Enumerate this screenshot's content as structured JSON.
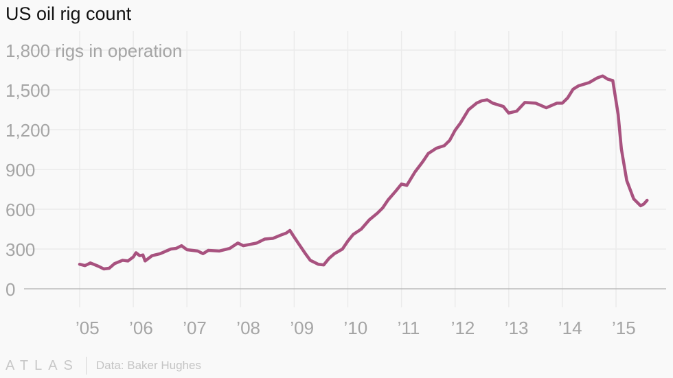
{
  "chart_data": {
    "type": "line",
    "title": "US oil rig count",
    "ylabel": "rigs in operation",
    "ylim": [
      0,
      1800
    ],
    "yticks": [
      0,
      300,
      600,
      900,
      1200,
      1500,
      1800
    ],
    "ytick_labels": [
      "0",
      "300",
      "600",
      "900",
      "1,200",
      "1,500",
      "1,800 rigs in operation"
    ],
    "xlim": [
      2004.5,
      2015.95
    ],
    "xticks": [
      2005,
      2006,
      2007,
      2008,
      2009,
      2010,
      2011,
      2012,
      2013,
      2014,
      2015
    ],
    "xtick_labels": [
      "’05",
      "’06",
      "’07",
      "’08",
      "’09",
      "’10",
      "’11",
      "’12",
      "’13",
      "’14",
      "’15"
    ],
    "grid": true,
    "color": "#a8527f",
    "series": [
      {
        "name": "US oil rig count",
        "points": [
          [
            2005.0,
            185
          ],
          [
            2005.1,
            175
          ],
          [
            2005.2,
            195
          ],
          [
            2005.35,
            170
          ],
          [
            2005.45,
            150
          ],
          [
            2005.55,
            155
          ],
          [
            2005.65,
            190
          ],
          [
            2005.8,
            215
          ],
          [
            2005.9,
            210
          ],
          [
            2006.0,
            240
          ],
          [
            2006.05,
            272
          ],
          [
            2006.12,
            250
          ],
          [
            2006.18,
            255
          ],
          [
            2006.22,
            210
          ],
          [
            2006.35,
            250
          ],
          [
            2006.5,
            265
          ],
          [
            2006.7,
            300
          ],
          [
            2006.8,
            305
          ],
          [
            2006.9,
            325
          ],
          [
            2007.0,
            295
          ],
          [
            2007.2,
            285
          ],
          [
            2007.3,
            265
          ],
          [
            2007.4,
            290
          ],
          [
            2007.6,
            285
          ],
          [
            2007.8,
            305
          ],
          [
            2007.95,
            345
          ],
          [
            2008.05,
            325
          ],
          [
            2008.3,
            345
          ],
          [
            2008.45,
            375
          ],
          [
            2008.6,
            380
          ],
          [
            2008.75,
            405
          ],
          [
            2008.85,
            420
          ],
          [
            2008.92,
            440
          ],
          [
            2009.0,
            390
          ],
          [
            2009.1,
            330
          ],
          [
            2009.2,
            270
          ],
          [
            2009.3,
            215
          ],
          [
            2009.45,
            185
          ],
          [
            2009.55,
            180
          ],
          [
            2009.65,
            230
          ],
          [
            2009.75,
            265
          ],
          [
            2009.9,
            300
          ],
          [
            2010.0,
            360
          ],
          [
            2010.1,
            410
          ],
          [
            2010.25,
            450
          ],
          [
            2010.4,
            520
          ],
          [
            2010.55,
            570
          ],
          [
            2010.65,
            610
          ],
          [
            2010.75,
            670
          ],
          [
            2010.9,
            740
          ],
          [
            2011.0,
            790
          ],
          [
            2011.1,
            780
          ],
          [
            2011.25,
            880
          ],
          [
            2011.4,
            960
          ],
          [
            2011.5,
            1020
          ],
          [
            2011.65,
            1060
          ],
          [
            2011.8,
            1080
          ],
          [
            2011.9,
            1120
          ],
          [
            2012.0,
            1195
          ],
          [
            2012.1,
            1250
          ],
          [
            2012.25,
            1350
          ],
          [
            2012.4,
            1400
          ],
          [
            2012.5,
            1418
          ],
          [
            2012.6,
            1425
          ],
          [
            2012.7,
            1400
          ],
          [
            2012.9,
            1375
          ],
          [
            2013.0,
            1325
          ],
          [
            2013.15,
            1340
          ],
          [
            2013.3,
            1405
          ],
          [
            2013.5,
            1400
          ],
          [
            2013.7,
            1365
          ],
          [
            2013.9,
            1400
          ],
          [
            2014.0,
            1400
          ],
          [
            2014.1,
            1440
          ],
          [
            2014.2,
            1505
          ],
          [
            2014.3,
            1530
          ],
          [
            2014.5,
            1555
          ],
          [
            2014.65,
            1590
          ],
          [
            2014.75,
            1605
          ],
          [
            2014.85,
            1580
          ],
          [
            2014.94,
            1570
          ],
          [
            2015.04,
            1315
          ],
          [
            2015.1,
            1055
          ],
          [
            2015.2,
            817
          ],
          [
            2015.33,
            678
          ],
          [
            2015.46,
            626
          ],
          [
            2015.52,
            640
          ],
          [
            2015.58,
            667
          ]
        ]
      }
    ]
  },
  "footer": {
    "logo": "ATLAS",
    "source": "Data: Baker Hughes"
  }
}
